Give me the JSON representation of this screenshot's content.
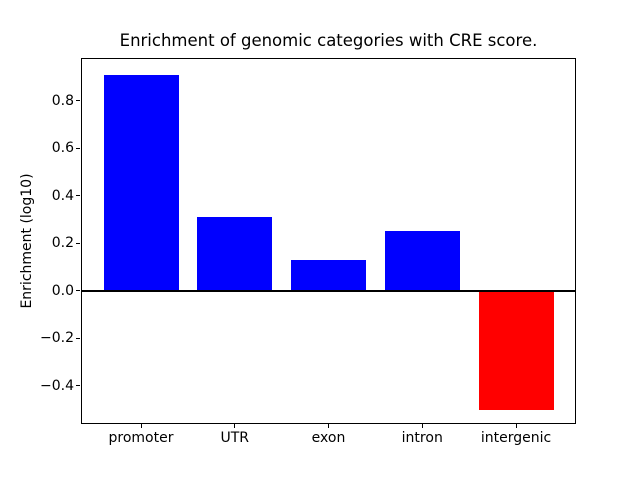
{
  "chart_data": {
    "type": "bar",
    "title": "Enrichment of genomic categories with CRE score.",
    "xlabel": "",
    "ylabel": "Enrichment (log10)",
    "categories": [
      "promoter",
      "UTR",
      "exon",
      "intron",
      "intergenic"
    ],
    "values": [
      0.91,
      0.31,
      0.13,
      0.25,
      -0.5
    ],
    "positive_color": "#0000ff",
    "negative_color": "#ff0000",
    "bar_colors": [
      "#0000ff",
      "#0000ff",
      "#0000ff",
      "#0000ff",
      "#ff0000"
    ],
    "ylim": [
      -0.56,
      0.98
    ],
    "xlim": [
      -0.64,
      4.64
    ],
    "bar_width": 0.8,
    "yticks": [
      {
        "value": 0.8,
        "label": "0.8"
      },
      {
        "value": 0.6,
        "label": "0.6"
      },
      {
        "value": 0.4,
        "label": "0.4"
      },
      {
        "value": 0.2,
        "label": "0.2"
      },
      {
        "value": 0.0,
        "label": "0.0"
      },
      {
        "value": -0.2,
        "label": "−0.2"
      },
      {
        "value": -0.4,
        "label": "−0.4"
      }
    ],
    "grid": false,
    "zero_line": true,
    "legend": null,
    "axis_color": "#000000",
    "background_color": "#ffffff"
  }
}
